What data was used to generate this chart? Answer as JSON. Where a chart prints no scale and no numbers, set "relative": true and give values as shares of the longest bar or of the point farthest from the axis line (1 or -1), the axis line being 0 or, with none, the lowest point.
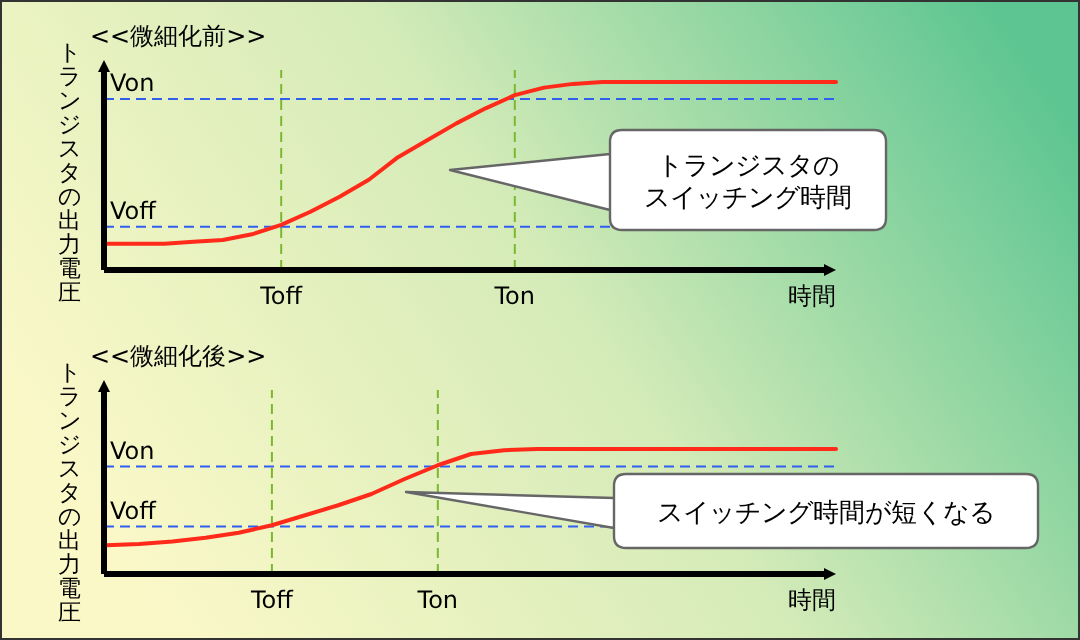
{
  "chart_data": [
    {
      "type": "line",
      "title": "<<微細化前>>",
      "xlabel": "時間",
      "ylabel": "トランジスタの出力電圧",
      "relative": true,
      "categories": [
        null,
        null,
        null,
        null,
        null,
        null,
        "Toff",
        null,
        null,
        null,
        null,
        null,
        null,
        null,
        "Ton",
        null,
        null,
        null,
        null,
        null,
        null,
        null,
        null,
        null,
        null,
        null
      ],
      "series": [
        {
          "color": "#ff2a1a",
          "values": [
            0.14,
            0.14,
            0.14,
            0.15,
            0.16,
            0.19,
            0.24,
            0.31,
            0.39,
            0.48,
            0.6,
            0.69,
            0.78,
            0.86,
            0.93,
            0.97,
            0.99,
            1,
            1,
            1,
            1,
            1,
            1,
            1,
            1,
            1
          ]
        }
      ],
      "ref_lines": [
        {
          "axis": "y",
          "value": 0.91,
          "label": "Von",
          "color": "#2f5ff0",
          "line_style": "dashed"
        },
        {
          "axis": "y",
          "value": 0.23,
          "label": "Voff",
          "color": "#2f5ff0",
          "line_style": "dashed"
        },
        {
          "axis": "x",
          "value": "Toff",
          "color": "#7cb82f",
          "line_style": "dashed"
        },
        {
          "axis": "x",
          "value": "Ton",
          "color": "#7cb82f",
          "line_style": "dashed"
        }
      ],
      "annotations": [
        "トランジスタの",
        "スイッチング時間"
      ]
    },
    {
      "type": "line",
      "title": "<<微細化後>>",
      "xlabel": "時間",
      "ylabel": "トランジスタの出力電圧",
      "relative": true,
      "categories": [
        null,
        null,
        null,
        null,
        null,
        "Toff",
        null,
        null,
        null,
        null,
        "Ton",
        null,
        null,
        null,
        null,
        null,
        null,
        null,
        null,
        null,
        null,
        null,
        null
      ],
      "series": [
        {
          "color": "#ff2a1a",
          "values": [
            0.23,
            0.24,
            0.26,
            0.29,
            0.33,
            0.39,
            0.47,
            0.55,
            0.64,
            0.76,
            0.87,
            0.96,
            0.99,
            1,
            1,
            1,
            1,
            1,
            1,
            1,
            1,
            1,
            1
          ]
        }
      ],
      "ref_lines": [
        {
          "axis": "y",
          "value": 0.86,
          "label": "Von",
          "color": "#2f5ff0",
          "line_style": "dashed"
        },
        {
          "axis": "y",
          "value": 0.38,
          "label": "Voff",
          "color": "#2f5ff0",
          "line_style": "dashed"
        },
        {
          "axis": "x",
          "value": "Toff",
          "color": "#7cb82f",
          "line_style": "dashed"
        },
        {
          "axis": "x",
          "value": "Ton",
          "color": "#7cb82f",
          "line_style": "dashed"
        }
      ],
      "annotations": [
        "スイッチング時間が短くなる"
      ]
    }
  ]
}
